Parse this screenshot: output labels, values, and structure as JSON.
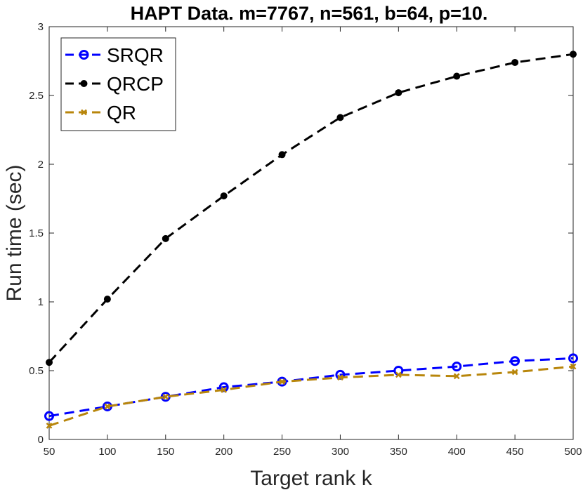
{
  "chart_data": {
    "type": "line",
    "title": "HAPT Data. m=7767, n=561, b=64, p=10.",
    "xlabel": "Target rank k",
    "ylabel": "Run time (sec)",
    "xlim": [
      50,
      500
    ],
    "ylim": [
      0,
      3
    ],
    "xticks": [
      50,
      100,
      150,
      200,
      250,
      300,
      350,
      400,
      450,
      500
    ],
    "yticks": [
      0,
      0.5,
      1,
      1.5,
      2,
      2.5,
      3
    ],
    "ytick_labels": [
      "0",
      "0.5",
      "1",
      "1.5",
      "2",
      "2.5",
      "3"
    ],
    "grid": false,
    "legend_position": "top-left",
    "x": [
      50,
      100,
      150,
      200,
      250,
      300,
      350,
      400,
      450,
      500
    ],
    "series": [
      {
        "name": "SRQR",
        "color": "#0000ff",
        "marker": "circle-open",
        "linestyle": "dashed",
        "values": [
          0.17,
          0.24,
          0.31,
          0.38,
          0.42,
          0.47,
          0.5,
          0.53,
          0.57,
          0.59
        ]
      },
      {
        "name": "QRCP",
        "color": "#000000",
        "marker": "dot",
        "linestyle": "dashed",
        "values": [
          0.56,
          1.02,
          1.46,
          1.77,
          2.07,
          2.34,
          2.52,
          2.64,
          2.74,
          2.8
        ]
      },
      {
        "name": "QR",
        "color": "#b8860b",
        "marker": "x",
        "linestyle": "dashed",
        "values": [
          0.1,
          0.24,
          0.31,
          0.36,
          0.42,
          0.45,
          0.47,
          0.46,
          0.49,
          0.53
        ]
      }
    ]
  }
}
